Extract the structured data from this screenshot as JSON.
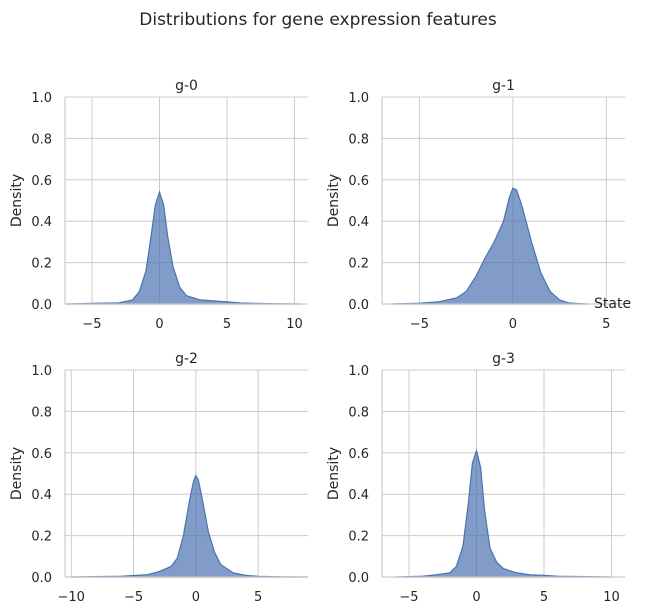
{
  "chart_data": {
    "type": "area",
    "title": "Distributions for gene expression features",
    "legend_title": "State",
    "ylabel": "Density",
    "ylim": [
      0,
      1.0
    ],
    "yticks": [
      0.0,
      0.2,
      0.4,
      0.6,
      0.8,
      1.0
    ],
    "grid": true,
    "panels": [
      {
        "title": "g-0",
        "xlim": [
          -7,
          11
        ],
        "xticks": [
          -5,
          0,
          5,
          10
        ],
        "x": [
          -7,
          -5,
          -3,
          -2,
          -1.5,
          -1,
          -0.6,
          -0.3,
          0,
          0.3,
          0.6,
          1,
          1.5,
          2,
          3,
          4,
          5,
          6,
          8,
          10.5
        ],
        "y": [
          0.0,
          0.003,
          0.006,
          0.02,
          0.06,
          0.16,
          0.34,
          0.48,
          0.54,
          0.48,
          0.33,
          0.18,
          0.08,
          0.04,
          0.02,
          0.015,
          0.01,
          0.005,
          0.002,
          0.0
        ]
      },
      {
        "title": "g-1",
        "xlim": [
          -7,
          6
        ],
        "xticks": [
          -5,
          0,
          5
        ],
        "x": [
          -6.5,
          -5,
          -4,
          -3,
          -2.5,
          -2,
          -1.5,
          -1,
          -0.5,
          -0.2,
          0,
          0.2,
          0.5,
          1,
          1.5,
          2,
          2.5,
          3,
          4
        ],
        "y": [
          0.0,
          0.004,
          0.01,
          0.03,
          0.06,
          0.13,
          0.22,
          0.3,
          0.4,
          0.51,
          0.56,
          0.55,
          0.47,
          0.3,
          0.15,
          0.06,
          0.02,
          0.005,
          0.0
        ]
      },
      {
        "title": "g-2",
        "xlim": [
          -10.5,
          9
        ],
        "xticks": [
          -10,
          -5,
          0,
          5
        ],
        "x": [
          -10,
          -8,
          -6,
          -4,
          -3,
          -2,
          -1.5,
          -1,
          -0.5,
          -0.2,
          0,
          0.2,
          0.5,
          1,
          1.5,
          2,
          3,
          4,
          5,
          7,
          9
        ],
        "y": [
          0.0,
          0.002,
          0.004,
          0.01,
          0.025,
          0.05,
          0.09,
          0.2,
          0.37,
          0.46,
          0.49,
          0.47,
          0.38,
          0.22,
          0.12,
          0.06,
          0.02,
          0.008,
          0.003,
          0.001,
          0.0
        ]
      },
      {
        "title": "g-3",
        "xlim": [
          -7,
          11
        ],
        "xticks": [
          -5,
          0,
          5,
          10
        ],
        "x": [
          -6,
          -4,
          -3,
          -2,
          -1.5,
          -1,
          -0.6,
          -0.3,
          0,
          0.3,
          0.6,
          1,
          1.5,
          2,
          3,
          4,
          5,
          6,
          8,
          10
        ],
        "y": [
          0.0,
          0.004,
          0.01,
          0.02,
          0.05,
          0.15,
          0.36,
          0.55,
          0.61,
          0.53,
          0.32,
          0.14,
          0.07,
          0.04,
          0.02,
          0.01,
          0.008,
          0.004,
          0.002,
          0.0
        ]
      }
    ]
  }
}
